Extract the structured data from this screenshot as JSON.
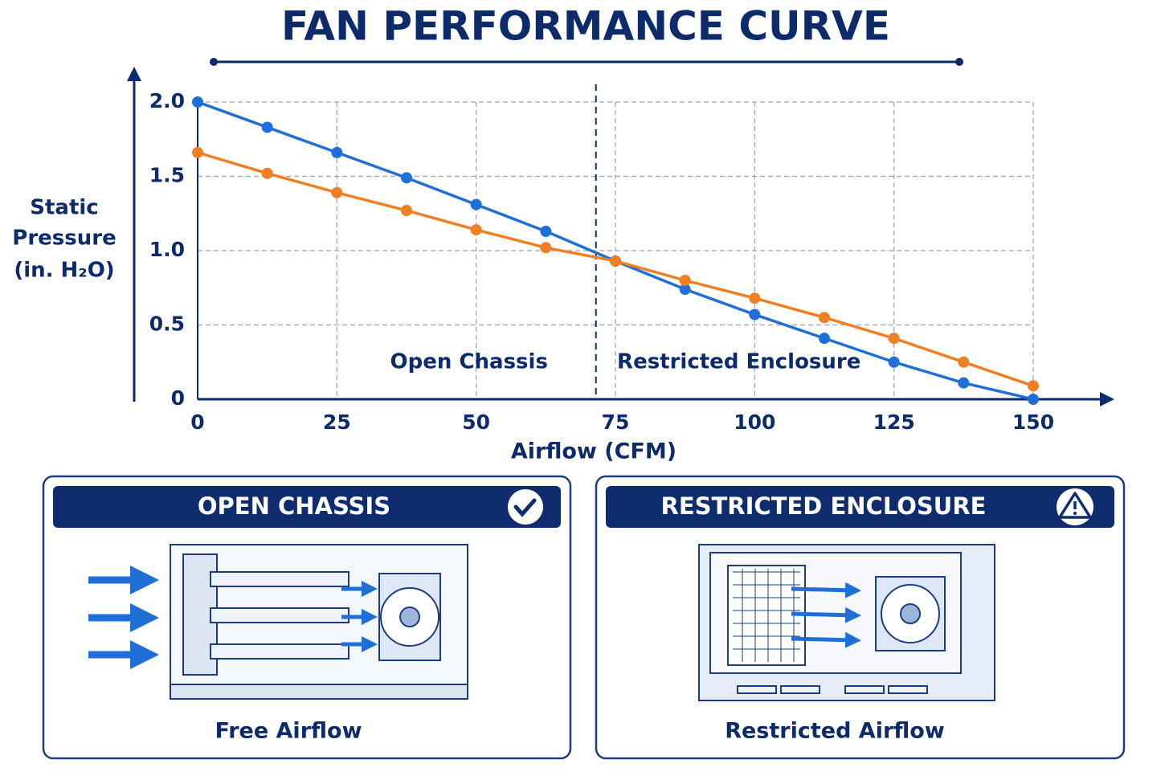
{
  "chart_data": {
    "type": "line",
    "title": "FAN PERFORMANCE CURVE",
    "x_label": "Airflow (CFM)",
    "y_label": [
      "Static",
      "Pressure",
      "(in. H₂O)"
    ],
    "x": [
      0,
      12.5,
      25,
      37.5,
      50,
      62.5,
      75,
      87.5,
      100,
      112.5,
      125,
      137.5,
      150
    ],
    "series": [
      {
        "color": "#1f6fd6",
        "values": [
          2.0,
          1.83,
          1.66,
          1.49,
          1.31,
          1.13,
          0.93,
          0.74,
          0.57,
          0.41,
          0.25,
          0.11,
          0
        ]
      },
      {
        "color": "#f07e22",
        "values": [
          1.66,
          1.52,
          1.39,
          1.27,
          1.14,
          1.02,
          0.93,
          0.8,
          0.68,
          0.55,
          0.41,
          0.25,
          0.09
        ]
      }
    ],
    "xlim": [
      0,
      150
    ],
    "xticks": [
      0,
      25,
      50,
      75,
      100,
      125,
      150
    ],
    "ylim": [
      0,
      2
    ],
    "yticks": [
      0,
      0.5,
      {
        "value": 1,
        "label": "1.0"
      },
      1.5,
      {
        "value": 2,
        "label": "2.0"
      }
    ],
    "grid": true,
    "divider": 71.5,
    "regions": [
      "Open Chassis",
      "Restricted Enclosure"
    ]
  },
  "panels": [
    {
      "title": "OPEN CHASSIS",
      "caption": "Free Airflow"
    },
    {
      "title": "RESTRICTED ENCLOSURE",
      "caption": "Restricted Airflow"
    }
  ]
}
